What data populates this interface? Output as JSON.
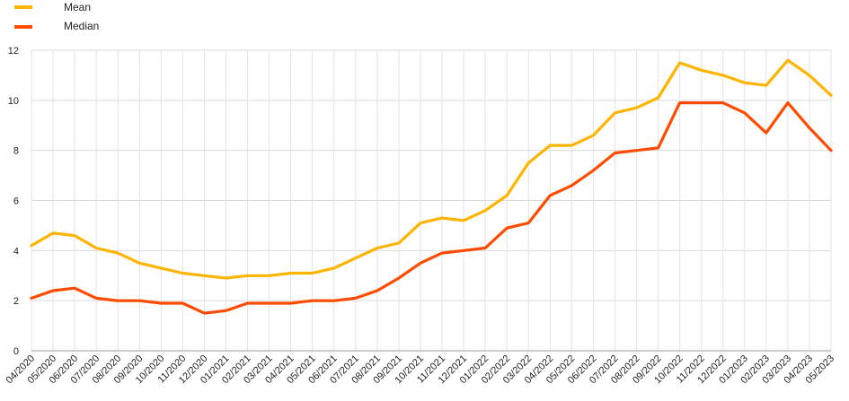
{
  "chart_data": {
    "type": "line",
    "title": "",
    "xlabel": "",
    "ylabel": "",
    "ylim": [
      0,
      12
    ],
    "yticks": [
      0,
      2,
      4,
      6,
      8,
      10,
      12
    ],
    "grid": true,
    "legend_position": "top-left",
    "categories": [
      "04/2020",
      "05/2020",
      "06/2020",
      "07/2020",
      "08/2020",
      "09/2020",
      "10/2020",
      "11/2020",
      "12/2020",
      "01/2021",
      "02/2021",
      "03/2021",
      "04/2021",
      "05/2021",
      "06/2021",
      "07/2021",
      "08/2021",
      "09/2021",
      "10/2021",
      "11/2021",
      "12/2021",
      "01/2022",
      "02/2022",
      "03/2022",
      "04/2022",
      "05/2022",
      "06/2022",
      "07/2022",
      "08/2022",
      "09/2022",
      "10/2022",
      "11/2022",
      "12/2022",
      "01/2023",
      "02/2023",
      "03/2023",
      "04/2023",
      "05/2023"
    ],
    "series": [
      {
        "name": "Mean",
        "color": "#FFB400",
        "values": [
          4.2,
          4.7,
          4.6,
          4.1,
          3.9,
          3.5,
          3.3,
          3.1,
          3.0,
          2.9,
          3.0,
          3.0,
          3.1,
          3.1,
          3.3,
          3.7,
          4.1,
          4.3,
          5.1,
          5.3,
          5.2,
          5.6,
          6.2,
          7.5,
          8.2,
          8.2,
          8.6,
          9.5,
          9.7,
          10.1,
          11.5,
          11.2,
          11.0,
          10.7,
          10.6,
          11.6,
          11.0,
          10.2
        ]
      },
      {
        "name": "Median",
        "color": "#FF4B00",
        "values": [
          2.1,
          2.4,
          2.5,
          2.1,
          2.0,
          2.0,
          1.9,
          1.9,
          1.5,
          1.6,
          1.9,
          1.9,
          1.9,
          2.0,
          2.0,
          2.1,
          2.4,
          2.9,
          3.5,
          3.9,
          4.0,
          4.1,
          4.9,
          5.1,
          6.2,
          6.6,
          7.2,
          7.9,
          8.0,
          8.1,
          9.9,
          9.9,
          9.9,
          9.5,
          8.7,
          9.9,
          8.9,
          8.0
        ]
      }
    ]
  }
}
